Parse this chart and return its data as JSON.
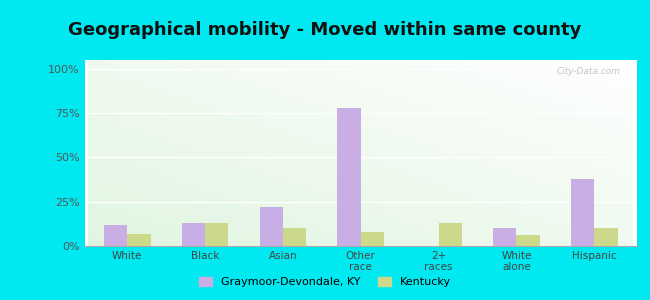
{
  "title": "Geographical mobility - Moved within same county",
  "categories": [
    "White",
    "Black",
    "Asian",
    "Other\nrace",
    "2+\nraces",
    "White\nalone",
    "Hispanic"
  ],
  "graymoor_values": [
    12,
    13,
    22,
    78,
    0,
    10,
    38
  ],
  "kentucky_values": [
    7,
    13,
    10,
    8,
    13,
    6,
    10
  ],
  "bar_color_graymoor": "#c9aee5",
  "bar_color_kentucky": "#cdd98a",
  "background_outer": "#00e8f0",
  "yticks": [
    0,
    25,
    50,
    75,
    100
  ],
  "ylim": [
    0,
    105
  ],
  "legend_graymoor": "Graymoor-Devondale, KY",
  "legend_kentucky": "Kentucky",
  "title_fontsize": 13,
  "watermark": "City-Data.com"
}
